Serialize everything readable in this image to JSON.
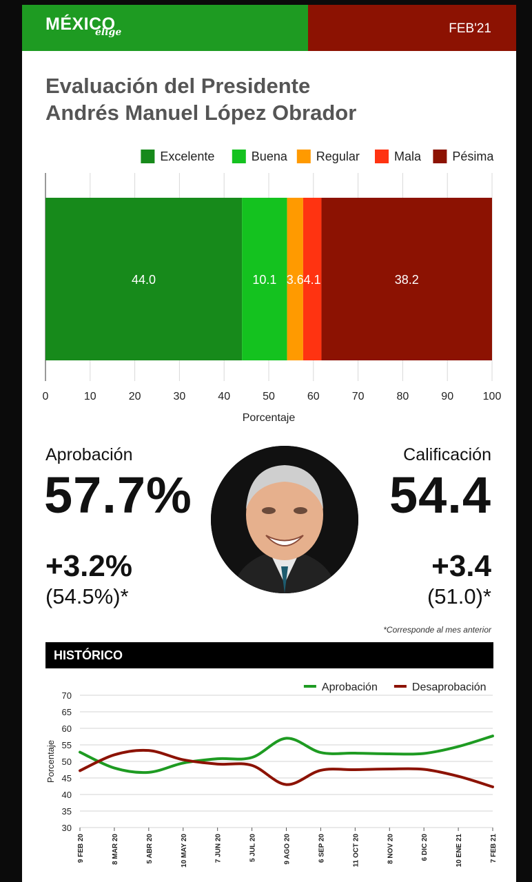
{
  "header": {
    "logo_main": "MÉXICO",
    "logo_sub": "elige",
    "date": "FEB'21"
  },
  "title": {
    "line1": "Evaluación del Presidente",
    "line2": "Andrés Manuel López Obrador"
  },
  "colors": {
    "excelente": "#178a1b",
    "buena": "#14c21f",
    "regular": "#ff9a00",
    "mala": "#ff3311",
    "pesima": "#8c1202",
    "aprobacion_line": "#1e9b22",
    "desaprobacion_line": "#8c1202"
  },
  "summary": {
    "approval_label": "Aprobación",
    "approval_value": "57.7%",
    "approval_delta": "+3.2%",
    "approval_prev": "(54.5%)*",
    "score_label": "Calificación",
    "score_value": "54.4",
    "score_delta": "+3.4",
    "score_prev": "(51.0)*",
    "footnote": "*Corresponde al mes anterior",
    "photo_icon": "president-portrait"
  },
  "historico": {
    "title": "HISTÓRICO"
  },
  "chart_data": [
    {
      "type": "bar",
      "orientation": "horizontal-stacked",
      "categories": [
        "Excelente",
        "Buena",
        "Regular",
        "Mala",
        "Pésima"
      ],
      "values": [
        44.0,
        10.1,
        3.6,
        4.1,
        38.2
      ],
      "value_labels": [
        "44.0",
        "10.1",
        "3.6",
        "4.1",
        "38.2"
      ],
      "xlabel": "Porcentaje",
      "xlim": [
        0,
        100
      ],
      "xticks": [
        "0",
        "10",
        "20",
        "30",
        "40",
        "50",
        "60",
        "70",
        "80",
        "90",
        "100"
      ],
      "legend_position": "top-right",
      "grid": true
    },
    {
      "type": "line",
      "x": [
        "9 FEB 20",
        "8 MAR 20",
        "5 ABR 20",
        "10 MAY 20",
        "7 JUN 20",
        "5 JUL 20",
        "9 AGO 20",
        "6 SEP 20",
        "11 OCT 20",
        "8 NOV 20",
        "6 DIC 20",
        "10 ENE 21",
        "7 FEB 21"
      ],
      "series": [
        {
          "name": "Aprobación",
          "values": [
            52.8,
            48.0,
            46.7,
            49.5,
            50.8,
            51.2,
            57.0,
            52.7,
            52.5,
            52.3,
            52.4,
            54.5,
            57.7
          ]
        },
        {
          "name": "Desaprobación",
          "values": [
            47.2,
            52.0,
            53.3,
            50.5,
            49.2,
            48.8,
            43.0,
            47.3,
            47.5,
            47.7,
            47.6,
            45.5,
            42.3
          ]
        }
      ],
      "ylabel": "Porcentaje",
      "ylim": [
        30,
        70
      ],
      "yticks": [
        "30",
        "35",
        "40",
        "45",
        "50",
        "55",
        "60",
        "65",
        "70"
      ],
      "legend_position": "top-right",
      "grid": true
    }
  ]
}
